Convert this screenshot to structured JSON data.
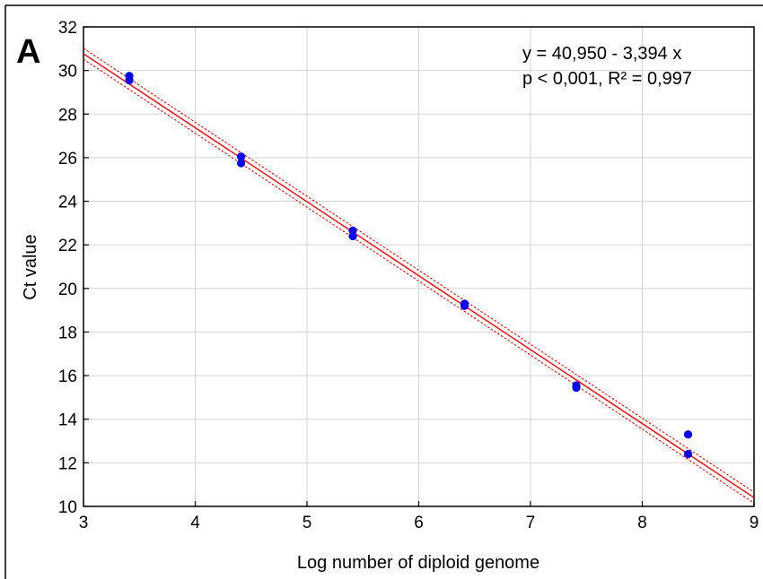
{
  "panel_label": "A",
  "chart_data": {
    "type": "scatter",
    "title": "",
    "xlabel": "Log number of diploid genome",
    "ylabel": "Ct value",
    "xlim": [
      3,
      9
    ],
    "ylim": [
      10,
      32
    ],
    "x_ticks": [
      3,
      4,
      5,
      6,
      7,
      8,
      9
    ],
    "y_ticks": [
      10,
      12,
      14,
      16,
      18,
      20,
      22,
      24,
      26,
      28,
      30,
      32
    ],
    "grid": true,
    "annotations": [
      "y = 40,950 - 3,394 x",
      "p < 0,001, R² = 0,997"
    ],
    "series": [
      {
        "points": [
          [
            3.41,
            29.75
          ],
          [
            3.41,
            29.55
          ],
          [
            4.41,
            26.05
          ],
          [
            4.41,
            25.75
          ],
          [
            5.41,
            22.65
          ],
          [
            5.41,
            22.4
          ],
          [
            6.41,
            19.3
          ],
          [
            6.41,
            19.2
          ],
          [
            7.41,
            15.55
          ],
          [
            7.41,
            15.45
          ],
          [
            8.41,
            13.3
          ],
          [
            8.41,
            12.4
          ]
        ],
        "color": "#0000ee"
      }
    ],
    "regression": {
      "intercept": 40.95,
      "slope": -3.394,
      "color": "#ff0000",
      "confidence_offset": 0.25
    }
  }
}
